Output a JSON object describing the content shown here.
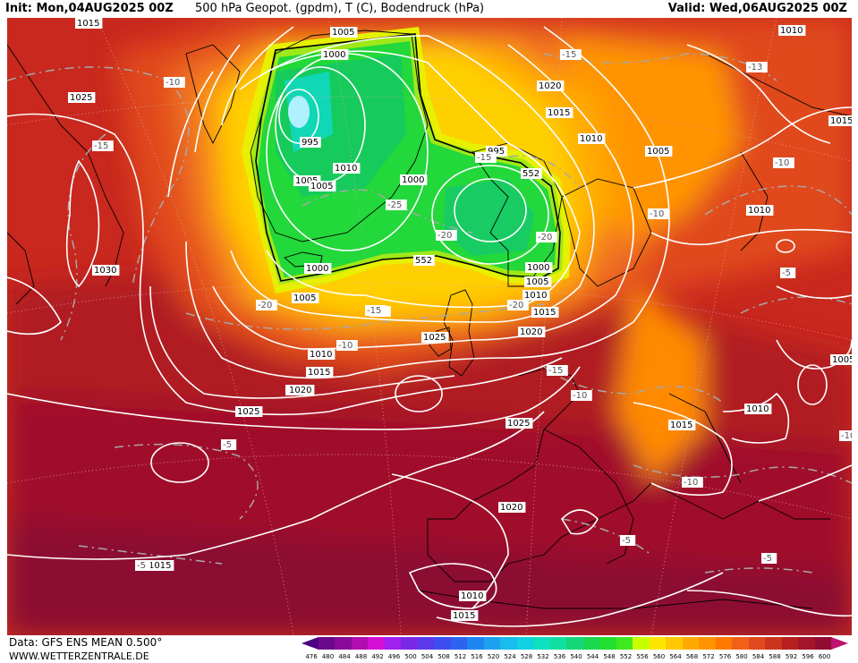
{
  "header": {
    "init": "Init: Mon,04AUG2025 00Z",
    "title": "500 hPa Geopot. (gpdm), T (C), Bodendruck (hPa)",
    "valid": "Valid: Wed,06AUG2025 00Z"
  },
  "footer": {
    "data_source": "Data: GFS ENS MEAN 0.500°",
    "website": "WWW.WETTERZENTRALE.DE"
  },
  "legend": {
    "ticks": [
      "476",
      "480",
      "484",
      "488",
      "492",
      "496",
      "500",
      "504",
      "508",
      "512",
      "516",
      "520",
      "524",
      "528",
      "532",
      "536",
      "540",
      "544",
      "548",
      "552",
      "556",
      "560",
      "564",
      "568",
      "572",
      "576",
      "580",
      "584",
      "588",
      "592",
      "596",
      "600"
    ],
    "colors": [
      "#4b0082",
      "#6a0a8a",
      "#8a0a9a",
      "#b00cb0",
      "#d40fd4",
      "#a020f0",
      "#7b28e6",
      "#5a3aeb",
      "#3d4df0",
      "#2a64f0",
      "#1e84f0",
      "#1ea0f0",
      "#18bcee",
      "#10d2e0",
      "#0ee0c0",
      "#10e0a0",
      "#14d878",
      "#1ad850",
      "#22e030",
      "#40e820",
      "#c8ff00",
      "#ffe600",
      "#ffc800",
      "#ffaa00",
      "#ff9400",
      "#ff7800",
      "#f26018",
      "#e04a1c",
      "#cc3420",
      "#b8201e",
      "#a4142a",
      "#900c30",
      "#c01070"
    ]
  },
  "pressure_labels": [
    {
      "t": "1015"
    },
    {
      "t": "1005"
    },
    {
      "t": "1000"
    },
    {
      "t": "1010"
    },
    {
      "t": "1025"
    },
    {
      "t": "1020"
    },
    {
      "t": "1015"
    },
    {
      "t": "995"
    },
    {
      "t": "1010"
    },
    {
      "t": "1005"
    },
    {
      "t": "1005"
    },
    {
      "t": "1000"
    },
    {
      "t": "995"
    },
    {
      "t": "1005"
    },
    {
      "t": "1010"
    },
    {
      "t": "1015"
    },
    {
      "t": "1030"
    },
    {
      "t": "1000"
    },
    {
      "t": "1005"
    },
    {
      "t": "1000"
    },
    {
      "t": "1005"
    },
    {
      "t": "1010"
    },
    {
      "t": "1015"
    },
    {
      "t": "1010"
    },
    {
      "t": "1015"
    },
    {
      "t": "1020"
    },
    {
      "t": "1025"
    },
    {
      "t": "1020"
    },
    {
      "t": "1025"
    },
    {
      "t": "1020"
    },
    {
      "t": "1025"
    },
    {
      "t": "1015"
    },
    {
      "t": "1010"
    },
    {
      "t": "1005"
    },
    {
      "t": "1010"
    },
    {
      "t": "1015"
    },
    {
      "t": "1020"
    },
    {
      "t": "1015"
    },
    {
      "t": "1010"
    }
  ],
  "temperature_labels": [
    {
      "t": "-10"
    },
    {
      "t": "-15"
    },
    {
      "t": "-15"
    },
    {
      "t": "-15"
    },
    {
      "t": "-15"
    },
    {
      "t": "-25"
    },
    {
      "t": "-20"
    },
    {
      "t": "-20"
    },
    {
      "t": "-20"
    },
    {
      "t": "-20"
    },
    {
      "t": "-15"
    },
    {
      "t": "-10"
    },
    {
      "t": "-15"
    },
    {
      "t": "-10"
    },
    {
      "t": "-10"
    },
    {
      "t": "-10"
    },
    {
      "t": "-5"
    },
    {
      "t": "-5"
    },
    {
      "t": "-10"
    },
    {
      "t": "-5"
    },
    {
      "t": "-5"
    },
    {
      "t": "-5"
    },
    {
      "t": "-13"
    },
    {
      "t": "-10"
    }
  ],
  "geopotential_labels": [
    {
      "t": "552"
    },
    {
      "t": "552"
    }
  ]
}
